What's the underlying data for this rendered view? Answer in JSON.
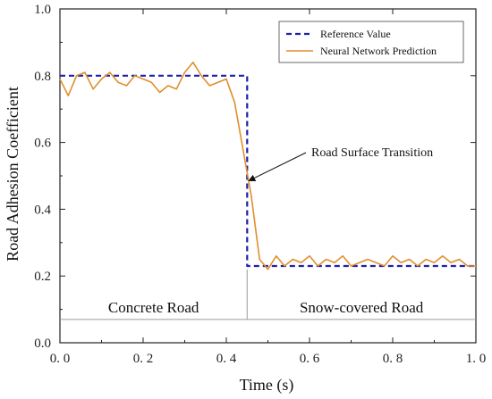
{
  "chart_data": {
    "type": "line",
    "xlabel": "Time (s)",
    "ylabel": "Road Adhesion Coefficient",
    "xlim": [
      0,
      1
    ],
    "ylim": [
      0,
      1
    ],
    "xticks": [
      0,
      0.2,
      0.4,
      0.6,
      0.8,
      1
    ],
    "yticks": [
      0,
      0.2,
      0.4,
      0.6,
      0.8,
      1
    ],
    "xtick_labels": [
      "0. 0",
      "0. 2",
      "0. 4",
      "0. 6",
      "0. 8",
      "1. 0"
    ],
    "ytick_labels": [
      "0.0",
      "0.2",
      "0.4",
      "0.6",
      "0.8",
      "1.0"
    ],
    "grid": false,
    "legend_position": "top-right",
    "series": [
      {
        "name": "Reference Value",
        "color": "#1f1fa8",
        "style": "dashed",
        "x": [
          0,
          0.45,
          0.45,
          1
        ],
        "y": [
          0.8,
          0.8,
          0.23,
          0.23
        ]
      },
      {
        "name": "Neural Network Prediction",
        "color": "#e08f2e",
        "style": "solid",
        "x": [
          0,
          0.02,
          0.04,
          0.06,
          0.08,
          0.1,
          0.12,
          0.14,
          0.16,
          0.18,
          0.2,
          0.22,
          0.24,
          0.26,
          0.28,
          0.3,
          0.32,
          0.34,
          0.36,
          0.38,
          0.4,
          0.42,
          0.44,
          0.46,
          0.48,
          0.5,
          0.52,
          0.54,
          0.56,
          0.58,
          0.6,
          0.62,
          0.64,
          0.66,
          0.68,
          0.7,
          0.72,
          0.74,
          0.76,
          0.78,
          0.8,
          0.82,
          0.84,
          0.86,
          0.88,
          0.9,
          0.92,
          0.94,
          0.96,
          0.98,
          1.0
        ],
        "y": [
          0.79,
          0.74,
          0.8,
          0.81,
          0.76,
          0.79,
          0.81,
          0.78,
          0.77,
          0.8,
          0.79,
          0.78,
          0.75,
          0.77,
          0.76,
          0.81,
          0.84,
          0.8,
          0.77,
          0.78,
          0.79,
          0.72,
          0.58,
          0.44,
          0.25,
          0.22,
          0.26,
          0.23,
          0.25,
          0.24,
          0.26,
          0.23,
          0.25,
          0.24,
          0.26,
          0.23,
          0.24,
          0.25,
          0.24,
          0.23,
          0.26,
          0.24,
          0.25,
          0.23,
          0.25,
          0.24,
          0.26,
          0.24,
          0.25,
          0.23,
          0.23
        ]
      }
    ],
    "regions": [
      {
        "label": "Concrete Road",
        "x_start": 0,
        "x_end": 0.45
      },
      {
        "label": "Snow-covered Road",
        "x_start": 0.45,
        "x_end": 1
      }
    ],
    "region_divider_x": 0.45,
    "region_baseline_y": 0.07,
    "annotation": {
      "text": "Road Surface Transition",
      "x": 0.45,
      "y": 0.48
    }
  }
}
